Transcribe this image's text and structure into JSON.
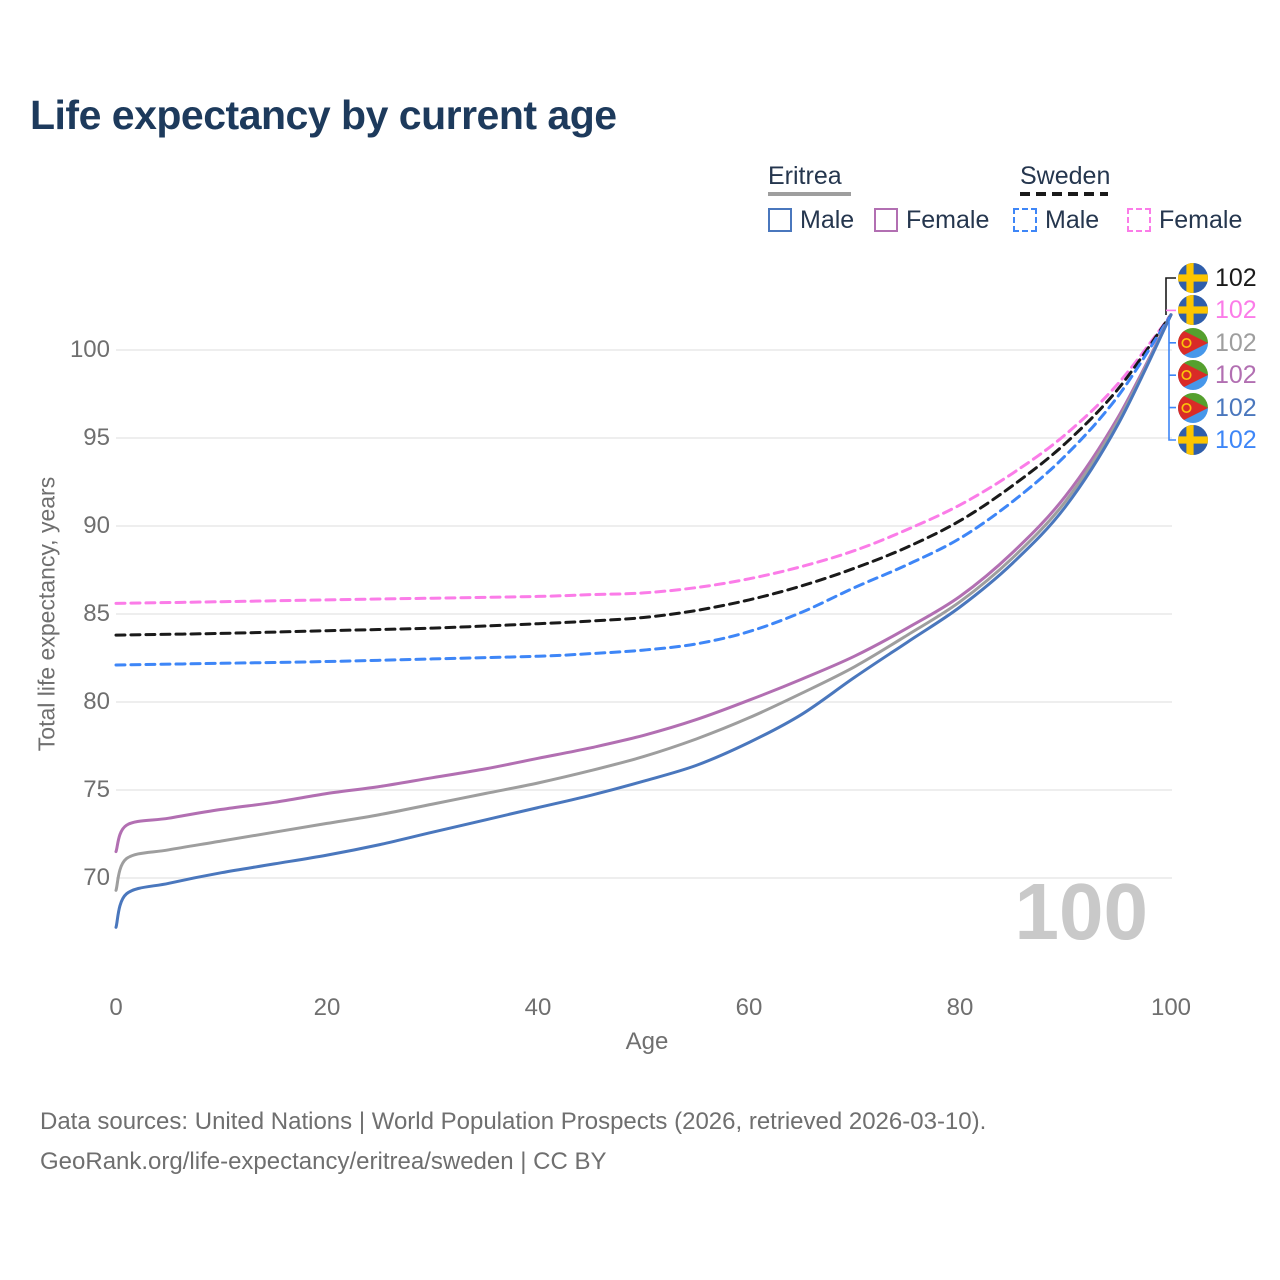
{
  "title": "Life expectancy by current age",
  "legend": {
    "groups": [
      {
        "country": "Eritrea",
        "style": "solid",
        "swatch_color": "#9e9e9e",
        "items": [
          {
            "label": "Male",
            "color": "#4a77bd"
          },
          {
            "label": "Female",
            "color": "#b26fb2"
          }
        ]
      },
      {
        "country": "Sweden",
        "style": "dashed",
        "swatch_color": "#1a1a1a",
        "items": [
          {
            "label": "Male",
            "color": "#3e86f7"
          },
          {
            "label": "Female",
            "color": "#fb7ce8"
          }
        ]
      }
    ]
  },
  "chart_data": {
    "type": "line",
    "title": "Life expectancy by current age",
    "xlabel": "Age",
    "ylabel": "Total life expectancy, years",
    "xlim": [
      0,
      100
    ],
    "ylim": [
      66,
      103
    ],
    "xticks": [
      0,
      20,
      40,
      60,
      80,
      100
    ],
    "yticks": [
      70,
      75,
      80,
      85,
      90,
      95,
      100
    ],
    "grid": "horizontal",
    "grid_color": "#e9e9e9",
    "series": [
      {
        "name": "Sweden Female",
        "country": "Sweden",
        "sex": "Female",
        "color": "#fb7ce8",
        "dash": true,
        "points": [
          [
            0,
            85.6
          ],
          [
            10,
            85.7
          ],
          [
            20,
            85.8
          ],
          [
            30,
            85.9
          ],
          [
            40,
            86.0
          ],
          [
            45,
            86.1
          ],
          [
            50,
            86.2
          ],
          [
            55,
            86.5
          ],
          [
            60,
            87.0
          ],
          [
            65,
            87.7
          ],
          [
            70,
            88.6
          ],
          [
            75,
            89.8
          ],
          [
            80,
            91.2
          ],
          [
            85,
            93.0
          ],
          [
            90,
            95.2
          ],
          [
            95,
            98.1
          ],
          [
            100,
            102
          ]
        ]
      },
      {
        "name": "Sweden (both sexes)",
        "country": "Sweden",
        "sex": "Both",
        "color": "#1a1a1a",
        "dash": true,
        "points": [
          [
            0,
            83.8
          ],
          [
            10,
            83.9
          ],
          [
            20,
            84.05
          ],
          [
            30,
            84.2
          ],
          [
            40,
            84.45
          ],
          [
            45,
            84.6
          ],
          [
            50,
            84.8
          ],
          [
            55,
            85.2
          ],
          [
            60,
            85.8
          ],
          [
            65,
            86.6
          ],
          [
            70,
            87.6
          ],
          [
            75,
            88.8
          ],
          [
            80,
            90.3
          ],
          [
            85,
            92.3
          ],
          [
            90,
            94.7
          ],
          [
            95,
            97.8
          ],
          [
            100,
            102
          ]
        ]
      },
      {
        "name": "Sweden Male",
        "country": "Sweden",
        "sex": "Male",
        "color": "#3e86f7",
        "dash": true,
        "points": [
          [
            0,
            82.1
          ],
          [
            10,
            82.2
          ],
          [
            20,
            82.3
          ],
          [
            30,
            82.45
          ],
          [
            40,
            82.6
          ],
          [
            45,
            82.75
          ],
          [
            50,
            82.95
          ],
          [
            55,
            83.3
          ],
          [
            60,
            84.0
          ],
          [
            65,
            85.1
          ],
          [
            70,
            86.5
          ],
          [
            75,
            87.8
          ],
          [
            80,
            89.3
          ],
          [
            85,
            91.4
          ],
          [
            90,
            94.0
          ],
          [
            95,
            97.4
          ],
          [
            100,
            102
          ]
        ]
      },
      {
        "name": "Eritrea Female",
        "country": "Eritrea",
        "sex": "Female",
        "color": "#b26fb2",
        "dash": false,
        "points": [
          [
            0,
            71.5
          ],
          [
            1,
            73.0
          ],
          [
            5,
            73.4
          ],
          [
            10,
            73.9
          ],
          [
            15,
            74.3
          ],
          [
            20,
            74.8
          ],
          [
            25,
            75.2
          ],
          [
            30,
            75.7
          ],
          [
            35,
            76.2
          ],
          [
            40,
            76.8
          ],
          [
            45,
            77.4
          ],
          [
            50,
            78.1
          ],
          [
            55,
            79.0
          ],
          [
            60,
            80.1
          ],
          [
            65,
            81.3
          ],
          [
            70,
            82.6
          ],
          [
            75,
            84.2
          ],
          [
            80,
            86.0
          ],
          [
            85,
            88.5
          ],
          [
            90,
            91.7
          ],
          [
            95,
            96.2
          ],
          [
            100,
            102
          ]
        ]
      },
      {
        "name": "Eritrea (both sexes)",
        "country": "Eritrea",
        "sex": "Both",
        "color": "#9e9e9e",
        "dash": false,
        "points": [
          [
            0,
            69.3
          ],
          [
            1,
            71.1
          ],
          [
            5,
            71.6
          ],
          [
            10,
            72.1
          ],
          [
            15,
            72.6
          ],
          [
            20,
            73.1
          ],
          [
            25,
            73.6
          ],
          [
            30,
            74.2
          ],
          [
            35,
            74.8
          ],
          [
            40,
            75.4
          ],
          [
            45,
            76.1
          ],
          [
            50,
            76.9
          ],
          [
            55,
            77.9
          ],
          [
            60,
            79.1
          ],
          [
            65,
            80.5
          ],
          [
            70,
            82.0
          ],
          [
            75,
            83.8
          ],
          [
            80,
            85.7
          ],
          [
            85,
            88.2
          ],
          [
            90,
            91.4
          ],
          [
            95,
            96.0
          ],
          [
            100,
            102
          ]
        ]
      },
      {
        "name": "Eritrea Male",
        "country": "Eritrea",
        "sex": "Male",
        "color": "#4a77bd",
        "dash": false,
        "points": [
          [
            0,
            67.2
          ],
          [
            1,
            69.1
          ],
          [
            5,
            69.7
          ],
          [
            10,
            70.3
          ],
          [
            15,
            70.8
          ],
          [
            20,
            71.3
          ],
          [
            25,
            71.9
          ],
          [
            30,
            72.6
          ],
          [
            35,
            73.3
          ],
          [
            40,
            74.0
          ],
          [
            45,
            74.7
          ],
          [
            50,
            75.5
          ],
          [
            55,
            76.4
          ],
          [
            60,
            77.7
          ],
          [
            65,
            79.3
          ],
          [
            70,
            81.4
          ],
          [
            75,
            83.4
          ],
          [
            80,
            85.4
          ],
          [
            85,
            87.9
          ],
          [
            90,
            91.1
          ],
          [
            95,
            95.8
          ],
          [
            100,
            102
          ]
        ]
      }
    ]
  },
  "end_labels": [
    {
      "flag": "sweden",
      "value": "102",
      "color": "#1a1a1a",
      "series": "Sweden (both sexes)"
    },
    {
      "flag": "sweden",
      "value": "102",
      "color": "#fb7ce8",
      "series": "Sweden Female"
    },
    {
      "flag": "eritrea",
      "value": "102",
      "color": "#9e9e9e",
      "series": "Eritrea (both sexes)"
    },
    {
      "flag": "eritrea",
      "value": "102",
      "color": "#b26fb2",
      "series": "Eritrea Female"
    },
    {
      "flag": "eritrea",
      "value": "102",
      "color": "#4a77bd",
      "series": "Eritrea Male"
    },
    {
      "flag": "sweden",
      "value": "102",
      "color": "#3e86f7",
      "series": "Sweden Male"
    }
  ],
  "watermark_age": "100",
  "footer": {
    "line1": "Data sources: United Nations | World Population Prospects (2026, retrieved 2026-03-10).",
    "line2": "GeoRank.org/life-expectancy/eritrea/sweden | CC BY"
  }
}
